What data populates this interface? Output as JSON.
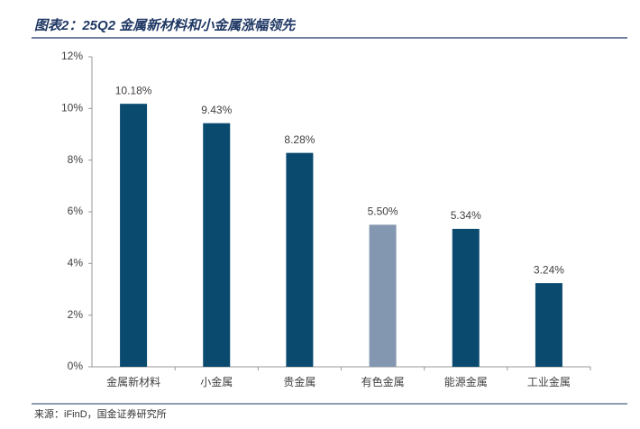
{
  "chart_data": {
    "type": "bar",
    "title": "图表2：25Q2 金属新材料和小金属涨幅领先",
    "categories": [
      "金属新材料",
      "小金属",
      "贵金属",
      "有色金属",
      "能源金属",
      "工业金属"
    ],
    "values": [
      10.18,
      9.43,
      8.28,
      5.5,
      5.34,
      3.24
    ],
    "value_labels": [
      "10.18%",
      "9.43%",
      "8.28%",
      "5.50%",
      "5.34%",
      "3.24%"
    ],
    "colors": [
      "#0b4a6f",
      "#0b4a6f",
      "#0b4a6f",
      "#8497b0",
      "#0b4a6f",
      "#0b4a6f"
    ],
    "ylim": [
      0,
      12
    ],
    "yticks": [
      {
        "value": 0,
        "label": "0%"
      },
      {
        "value": 2,
        "label": "2%"
      },
      {
        "value": 4,
        "label": "4%"
      },
      {
        "value": 6,
        "label": "6%"
      },
      {
        "value": 8,
        "label": "8%"
      },
      {
        "value": 10,
        "label": "10%"
      },
      {
        "value": 12,
        "label": "12%"
      }
    ],
    "grid": false,
    "source": "来源：iFinD，国金证券研究所"
  }
}
